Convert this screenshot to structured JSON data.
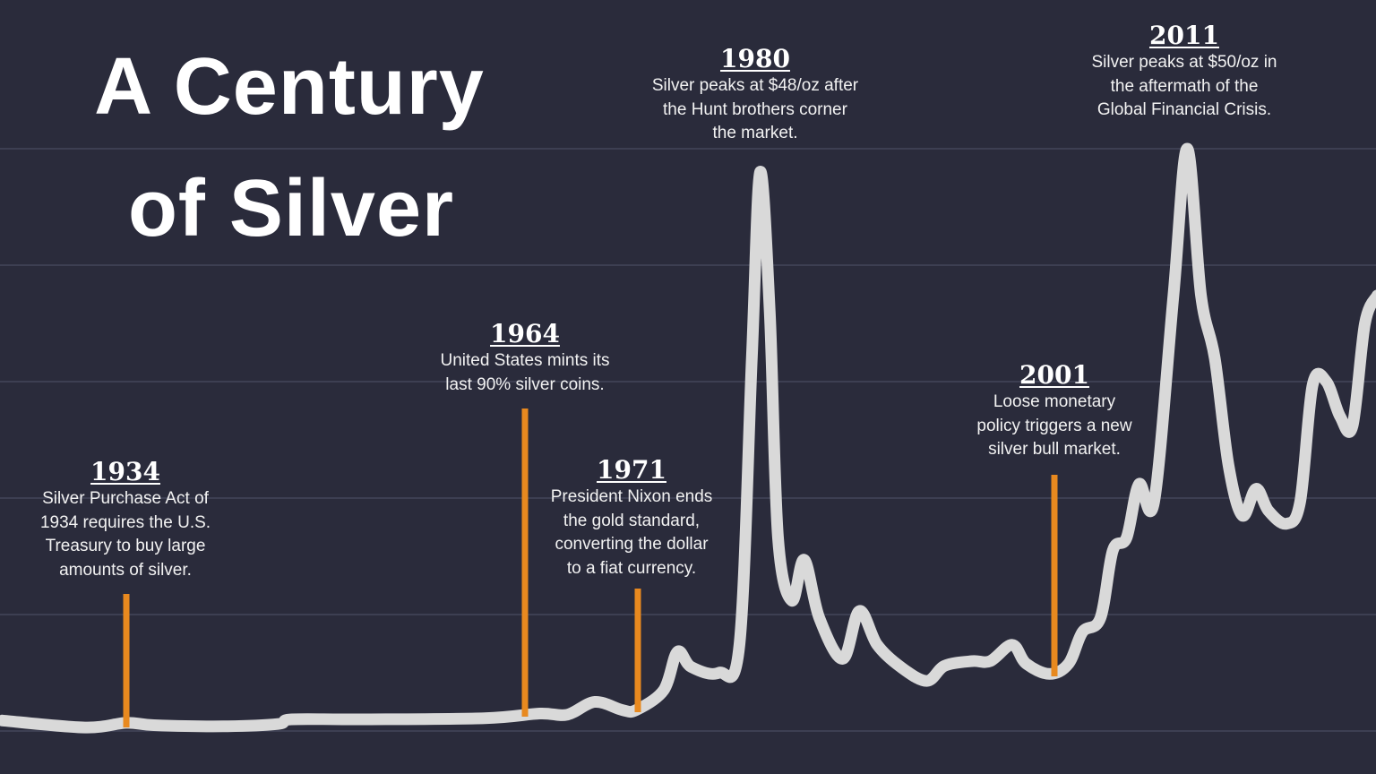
{
  "title_lines": [
    "A Century",
    "of Silver"
  ],
  "colors": {
    "background": "#2a2b3b",
    "line": "#d9d9d9",
    "marker": "#e8891f",
    "grid": "#3d3f52"
  },
  "chart_data": {
    "type": "line",
    "title": "A Century of Silver",
    "xlabel": "",
    "ylabel": "",
    "xlim": [
      1925,
      2025
    ],
    "ylim": [
      0,
      50
    ],
    "grid": true,
    "grid_values": [
      0,
      10,
      20,
      30,
      40,
      50
    ],
    "series": [
      {
        "points": [
          [
            1925,
            0.9
          ],
          [
            1931,
            0.3
          ],
          [
            1934,
            0.7
          ],
          [
            1936,
            0.5
          ],
          [
            1941,
            0.4
          ],
          [
            1945,
            0.6
          ],
          [
            1946,
            1.0
          ],
          [
            1951,
            1.0
          ],
          [
            1960,
            1.1
          ],
          [
            1964,
            1.5
          ],
          [
            1966,
            1.4
          ],
          [
            1968,
            2.5
          ],
          [
            1970,
            1.8
          ],
          [
            1971,
            1.8
          ],
          [
            1973,
            3.5
          ],
          [
            1974,
            6.8
          ],
          [
            1975,
            5.5
          ],
          [
            1977,
            5.0
          ],
          [
            1978.5,
            7.4
          ],
          [
            1979.4,
            32
          ],
          [
            1980,
            48
          ],
          [
            1980.7,
            36
          ],
          [
            1981.3,
            16.6
          ],
          [
            1982.3,
            11.2
          ],
          [
            1983.2,
            14.7
          ],
          [
            1984.3,
            9.7
          ],
          [
            1986,
            6.2
          ],
          [
            1987.2,
            10.3
          ],
          [
            1988.5,
            7.4
          ],
          [
            1990.2,
            5.5
          ],
          [
            1992.1,
            4.3
          ],
          [
            1993.4,
            5.6
          ],
          [
            1995.4,
            6
          ],
          [
            1996.7,
            6
          ],
          [
            1998.3,
            7.4
          ],
          [
            1999.3,
            5.8
          ],
          [
            2001,
            4.9
          ],
          [
            2002.4,
            5.8
          ],
          [
            2003.4,
            8.5
          ],
          [
            2004.7,
            9.7
          ],
          [
            2005.6,
            15.5
          ],
          [
            2006.6,
            16.6
          ],
          [
            2007.5,
            21.2
          ],
          [
            2008.6,
            19.7
          ],
          [
            2010,
            37.4
          ],
          [
            2011,
            50
          ],
          [
            2012,
            37.4
          ],
          [
            2013,
            32
          ],
          [
            2014,
            22.8
          ],
          [
            2015,
            18.5
          ],
          [
            2016,
            20.8
          ],
          [
            2016.9,
            18.9
          ],
          [
            2018.2,
            17.8
          ],
          [
            2019.2,
            19.7
          ],
          [
            2020.1,
            29.7
          ],
          [
            2021.1,
            30
          ],
          [
            2022.1,
            27
          ],
          [
            2023,
            26.2
          ],
          [
            2023.9,
            35
          ],
          [
            2024.8,
            37.4
          ]
        ]
      }
    ],
    "annotations": [
      {
        "year": "1934",
        "text": "Silver Purchase Act of\n1934 requires the U.S.\nTreasury to buy large\namounts of silver.",
        "marker": true
      },
      {
        "year": "1964",
        "text": "United States mints its\nlast 90% silver coins.",
        "marker": true
      },
      {
        "year": "1971",
        "text": "President Nixon ends\nthe gold standard,\nconverting the dollar\nto a fiat currency.",
        "marker": true
      },
      {
        "year": "1980",
        "text": "Silver peaks at $48/oz after\nthe Hunt brothers corner\nthe market.",
        "marker": false
      },
      {
        "year": "2001",
        "text": "Loose monetary\npolicy triggers a new\nsilver bull market.",
        "marker": true
      },
      {
        "year": "2011",
        "text": "Silver peaks at $50/oz in\nthe aftermath of the\nGlobal Financial Crisis.",
        "marker": false
      }
    ]
  }
}
